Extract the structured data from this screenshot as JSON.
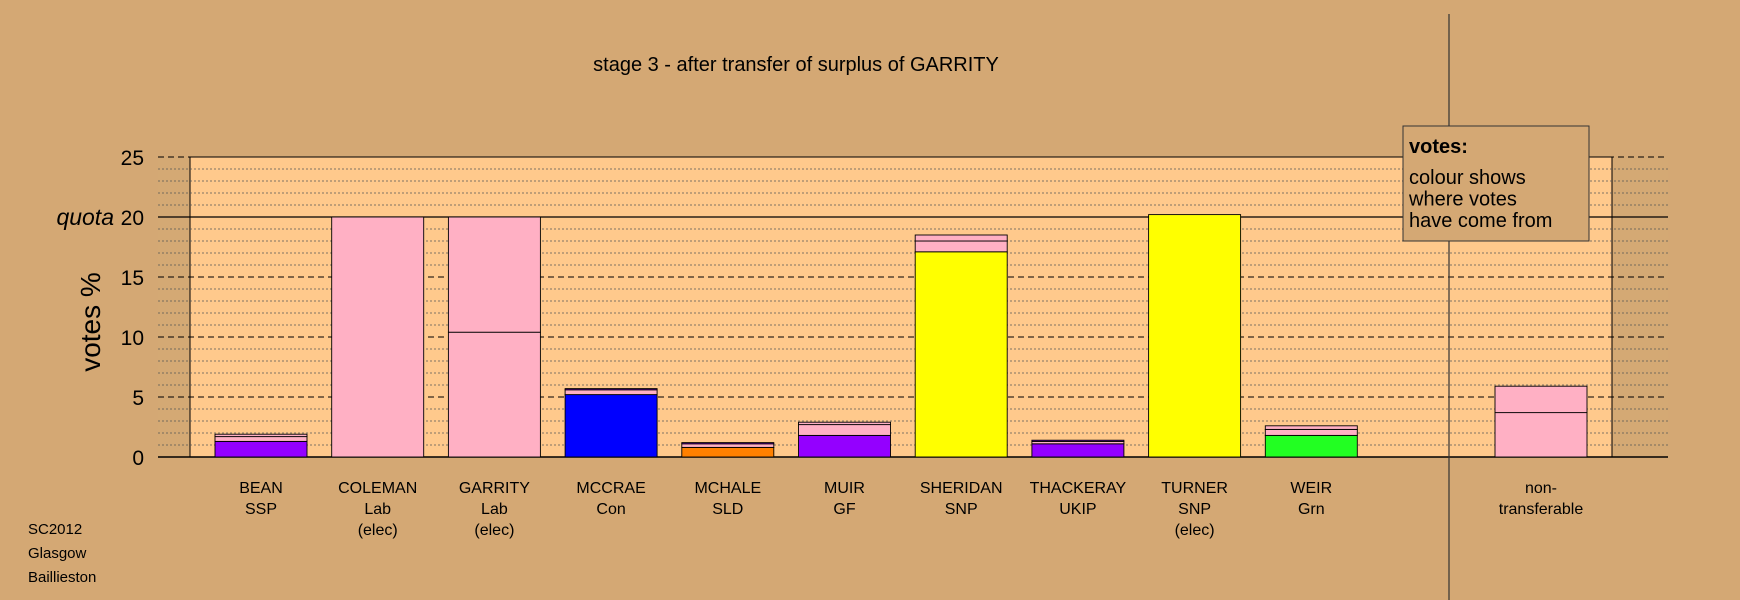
{
  "chart_data": {
    "type": "bar",
    "title": "stage 3 - after transfer of surplus of GARRITY",
    "ylabel": "votes %",
    "ylim": [
      0,
      25
    ],
    "yticks": [
      0,
      5,
      10,
      15,
      20,
      25
    ],
    "quota": {
      "label": "quota",
      "value": 20
    },
    "grid": true,
    "candidates": [
      {
        "name": "BEAN",
        "party": "SSP",
        "status": "",
        "segments": [
          {
            "value": 1.3,
            "color": "#9400ff"
          },
          {
            "value": 0.4,
            "color": "#ffb0c4"
          },
          {
            "value": 0.2,
            "color": "#ffb0c4"
          }
        ]
      },
      {
        "name": "COLEMAN",
        "party": "Lab",
        "status": "(elec)",
        "segments": [
          {
            "value": 20.0,
            "color": "#ffb0c4"
          }
        ]
      },
      {
        "name": "GARRITY",
        "party": "Lab",
        "status": "(elec)",
        "segments": [
          {
            "value": 10.4,
            "color": "#ffb0c4"
          },
          {
            "value": 9.6,
            "color": "#ffb0c4"
          }
        ]
      },
      {
        "name": "MCCRAE",
        "party": "Con",
        "status": "",
        "segments": [
          {
            "value": 5.2,
            "color": "#0000ff"
          },
          {
            "value": 0.4,
            "color": "#ffb0c4"
          },
          {
            "value": 0.1,
            "color": "#9400ff"
          }
        ]
      },
      {
        "name": "MCHALE",
        "party": "SLD",
        "status": "",
        "segments": [
          {
            "value": 0.8,
            "color": "#ff8000"
          },
          {
            "value": 0.3,
            "color": "#ffb0c4"
          },
          {
            "value": 0.1,
            "color": "#9400ff"
          }
        ]
      },
      {
        "name": "MUIR",
        "party": "GF",
        "status": "",
        "segments": [
          {
            "value": 1.8,
            "color": "#9400ff"
          },
          {
            "value": 0.9,
            "color": "#ffb0c4"
          },
          {
            "value": 0.2,
            "color": "#ffb0c4"
          }
        ]
      },
      {
        "name": "SHERIDAN",
        "party": "SNP",
        "status": "",
        "segments": [
          {
            "value": 17.1,
            "color": "#ffff00"
          },
          {
            "value": 0.9,
            "color": "#ffb0c4"
          },
          {
            "value": 0.5,
            "color": "#ffb0c4"
          }
        ]
      },
      {
        "name": "THACKERAY",
        "party": "UKIP",
        "status": "",
        "segments": [
          {
            "value": 1.1,
            "color": "#9400ff"
          },
          {
            "value": 0.2,
            "color": "#ffb0c4"
          },
          {
            "value": 0.1,
            "color": "#9400ff"
          }
        ]
      },
      {
        "name": "TURNER",
        "party": "SNP",
        "status": "(elec)",
        "segments": [
          {
            "value": 20.2,
            "color": "#ffff00"
          }
        ]
      },
      {
        "name": "WEIR",
        "party": "Grn",
        "status": "",
        "segments": [
          {
            "value": 1.8,
            "color": "#22ff22"
          },
          {
            "value": 0.5,
            "color": "#ffb0c4"
          },
          {
            "value": 0.3,
            "color": "#ffb0c4"
          }
        ]
      }
    ],
    "nontransferable": {
      "line1": "non-",
      "line2": "transferable",
      "segments": [
        {
          "value": 3.7,
          "color": "#ffb0c4"
        },
        {
          "value": 2.2,
          "color": "#ffb0c4"
        }
      ]
    },
    "legend": {
      "title": "votes:",
      "lines": [
        "colour shows",
        "where votes",
        "have come from"
      ],
      "position": "top-right"
    }
  },
  "footer": {
    "line1": "SC2012",
    "line2": "Glasgow",
    "line3": "Baillieston"
  },
  "colors": {
    "background": "#d4a874",
    "plot_area": "#ffc98c"
  }
}
